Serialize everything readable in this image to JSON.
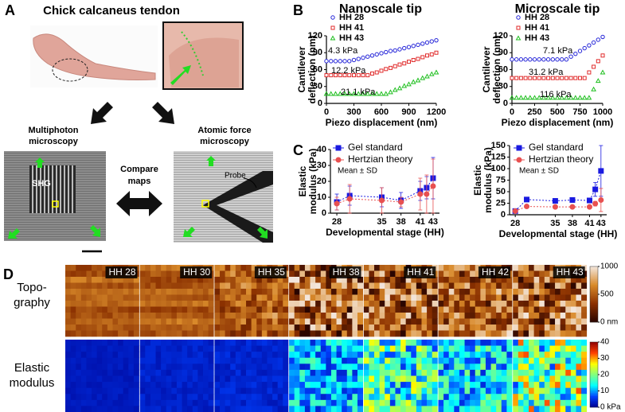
{
  "panels": {
    "labels": [
      "A",
      "B",
      "C",
      "D"
    ]
  },
  "panel_a": {
    "title": "Chick calcaneus tendon",
    "left_label": [
      "Multiphoton",
      "microscopy"
    ],
    "right_label": [
      "Atomic force",
      "microscopy"
    ],
    "compare": [
      "Compare",
      "maps"
    ],
    "shg": "SHG",
    "probe": "Probe"
  },
  "chart_data": [
    {
      "type": "line",
      "title": "Nanoscale tip",
      "x": [
        0,
        50,
        100,
        150,
        200,
        250,
        300,
        350,
        400,
        450,
        500,
        550,
        600,
        650,
        700,
        750,
        800,
        850,
        900,
        950,
        1000,
        1050,
        1100,
        1150,
        1200
      ],
      "xlim": [
        0,
        1200
      ],
      "xticks": [
        0,
        300,
        600,
        900,
        1200
      ],
      "ylim": [
        0,
        120
      ],
      "yticks": [
        0,
        30,
        60,
        90,
        120
      ],
      "xlabel": "Piezo displacement (nm)",
      "ylabel": [
        "Cantilever",
        "deflection (nm)"
      ],
      "series": [
        {
          "name": "HH 28",
          "color": "#2424d8",
          "marker": "circle",
          "values": [
            75,
            75,
            75,
            75,
            75,
            75,
            77,
            79,
            81,
            83,
            85,
            87,
            89,
            91,
            93,
            94,
            96,
            98,
            100,
            102,
            104,
            106,
            108,
            110,
            112
          ]
        },
        {
          "name": "HH 41",
          "color": "#e02a2a",
          "marker": "square",
          "values": [
            50,
            50,
            50,
            50,
            50,
            50,
            50,
            50,
            50,
            50,
            53,
            55,
            58,
            61,
            63,
            66,
            69,
            71,
            74,
            77,
            79,
            82,
            85,
            87,
            90
          ]
        },
        {
          "name": "HH 43",
          "color": "#1fbf1f",
          "marker": "triangle",
          "values": [
            17,
            17,
            17,
            17,
            17,
            17,
            17,
            17,
            17,
            17,
            17,
            17,
            17,
            17,
            20,
            24,
            27,
            31,
            34,
            38,
            41,
            45,
            48,
            52,
            55
          ]
        }
      ],
      "annotations": [
        "4.3 kPa",
        "12.2 kPa",
        "21.1 kPa"
      ]
    },
    {
      "type": "line",
      "title": "Microscale tip",
      "x": [
        0,
        50,
        100,
        150,
        200,
        250,
        300,
        350,
        400,
        450,
        500,
        550,
        600,
        650,
        700,
        750,
        800,
        850,
        900,
        950,
        1000
      ],
      "xlim": [
        0,
        1000
      ],
      "xticks": [
        0,
        250,
        500,
        750,
        1000
      ],
      "ylim": [
        0,
        120
      ],
      "yticks": [
        0,
        30,
        60,
        90,
        120
      ],
      "xlabel": "Piezo displacement (nm)",
      "ylabel": [
        "Cantilever",
        "deflection (nm)"
      ],
      "series": [
        {
          "name": "HH 28",
          "color": "#2424d8",
          "marker": "circle",
          "values": [
            78,
            78,
            78,
            78,
            78,
            78,
            78,
            78,
            78,
            78,
            78,
            78,
            78,
            83,
            88,
            93,
            98,
            103,
            108,
            113,
            118
          ]
        },
        {
          "name": "HH 41",
          "color": "#e02a2a",
          "marker": "square",
          "values": [
            45,
            45,
            45,
            45,
            45,
            45,
            45,
            45,
            45,
            45,
            45,
            45,
            45,
            45,
            45,
            45,
            45,
            55,
            65,
            75,
            85
          ]
        },
        {
          "name": "HH 43",
          "color": "#1fbf1f",
          "marker": "triangle",
          "values": [
            10,
            10,
            10,
            10,
            10,
            10,
            10,
            10,
            10,
            10,
            10,
            10,
            10,
            10,
            10,
            10,
            10,
            10,
            25,
            40,
            55
          ]
        }
      ],
      "annotations": [
        "7.1 kPa",
        "31.2 kPa",
        "116 kPa"
      ]
    },
    {
      "type": "errorbar",
      "x": [
        28,
        30,
        35,
        38,
        41,
        42,
        43
      ],
      "xlim": [
        27,
        44
      ],
      "xticks": [
        28,
        35,
        38,
        41,
        43
      ],
      "ylim": [
        0,
        40
      ],
      "yticks": [
        0,
        10,
        20,
        30,
        40
      ],
      "xlabel": "Developmental stage (HH)",
      "ylabel": [
        "Elastic",
        "modulus (kPa)"
      ],
      "series": [
        {
          "name": "Gel standard",
          "color": "#1a1ae0",
          "marker": "square",
          "values": [
            7,
            11,
            10,
            8,
            14,
            16,
            22
          ],
          "errors": [
            5,
            6,
            6,
            5,
            6,
            7,
            13
          ]
        },
        {
          "name": "Hertzian theory",
          "color": "#e85050",
          "marker": "circle",
          "values": [
            6,
            9,
            8,
            7,
            12,
            12,
            17
          ],
          "errors": [
            4,
            9,
            8,
            3,
            10,
            12,
            17
          ]
        }
      ],
      "annotation": "Mean ± SD"
    },
    {
      "type": "errorbar",
      "x": [
        28,
        30,
        35,
        38,
        41,
        42,
        43
      ],
      "xlim": [
        27,
        44
      ],
      "xticks": [
        28,
        35,
        38,
        41,
        43
      ],
      "ylim": [
        0,
        150
      ],
      "yticks": [
        0,
        25,
        50,
        75,
        100,
        125,
        150
      ],
      "xlabel": "Developmental stage (HH)",
      "ylabel": [
        "Elastic",
        "modulus (kPa)"
      ],
      "series": [
        {
          "name": "Gel standard",
          "color": "#1a1ae0",
          "marker": "square",
          "values": [
            8,
            33,
            30,
            32,
            31,
            55,
            95
          ],
          "errors": [
            3,
            5,
            5,
            5,
            5,
            15,
            55
          ]
        },
        {
          "name": "Hertzian theory",
          "color": "#e85050",
          "marker": "circle",
          "values": [
            8,
            18,
            17,
            17,
            17,
            24,
            32
          ],
          "errors": [
            2,
            3,
            3,
            3,
            3,
            5,
            25
          ]
        }
      ],
      "annotation": "Mean ± SD"
    }
  ],
  "panel_d": {
    "stages": [
      "HH 28",
      "HH 30",
      "HH 35",
      "HH 38",
      "HH 41",
      "HH 42",
      "HH 43"
    ],
    "row_labels": [
      [
        "Topo-",
        "graphy"
      ],
      [
        "Elastic",
        "modulus"
      ]
    ],
    "colorbars": [
      {
        "lim": [
          0,
          1000
        ],
        "ticks": [
          {
            "value": 0,
            "label": "0 nm"
          },
          500,
          1000
        ],
        "colors": [
          "#2a0500",
          "#8a3000",
          "#d98a2a",
          "#f3e6dc"
        ]
      },
      {
        "lim": [
          0,
          40
        ],
        "ticks": [
          {
            "value": 0,
            "label": "0 kPa"
          },
          10,
          20,
          30,
          40
        ],
        "colors": [
          "#00008f",
          "#0040ff",
          "#00ffff",
          "#80ff80",
          "#ffff00",
          "#ff4000",
          "#8f0000"
        ]
      }
    ]
  }
}
